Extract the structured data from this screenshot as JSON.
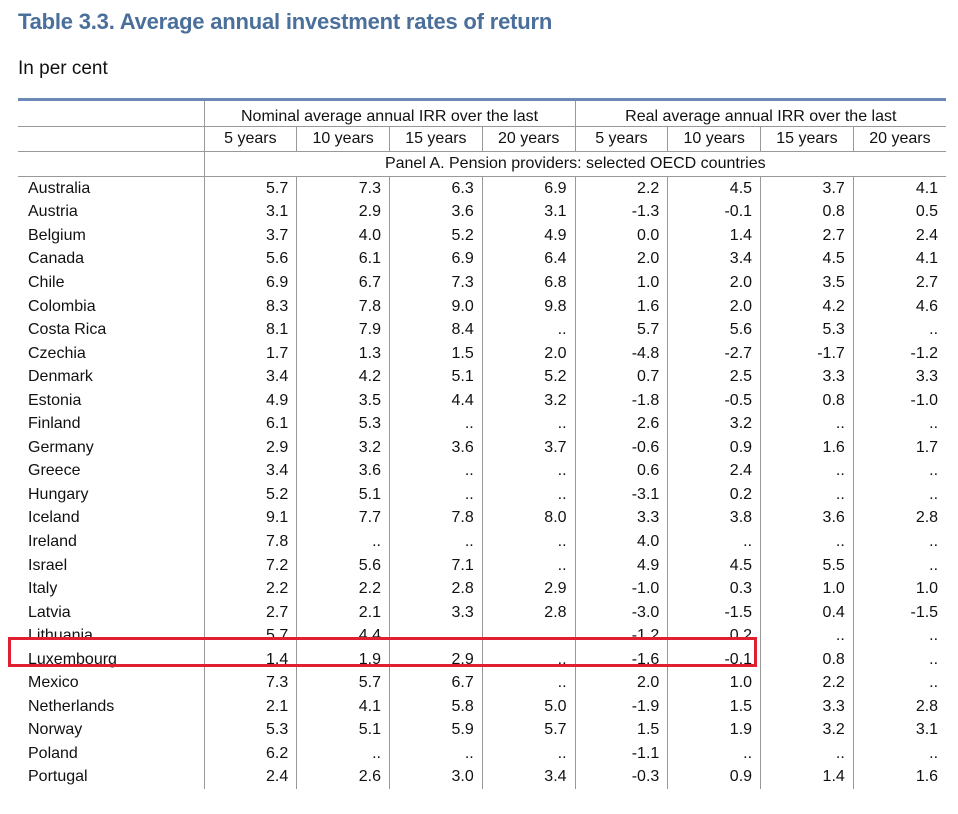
{
  "title": "Table 3.3. Average annual investment rates of return",
  "subtitle": "In per cent",
  "header": {
    "group_nominal": "Nominal average annual IRR over the last",
    "group_real": "Real average annual IRR over the last",
    "years": [
      "5 years",
      "10 years",
      "15 years",
      "20 years",
      "5 years",
      "10 years",
      "15 years",
      "20 years"
    ],
    "panel": "Panel A. Pension providers: selected OECD countries"
  },
  "rows": [
    {
      "country": "Australia",
      "values": [
        "5.7",
        "7.3",
        "6.3",
        "6.9",
        "2.2",
        "4.5",
        "3.7",
        "4.1"
      ]
    },
    {
      "country": "Austria",
      "values": [
        "3.1",
        "2.9",
        "3.6",
        "3.1",
        "-1.3",
        "-0.1",
        "0.8",
        "0.5"
      ]
    },
    {
      "country": "Belgium",
      "values": [
        "3.7",
        "4.0",
        "5.2",
        "4.9",
        "0.0",
        "1.4",
        "2.7",
        "2.4"
      ]
    },
    {
      "country": "Canada",
      "values": [
        "5.6",
        "6.1",
        "6.9",
        "6.4",
        "2.0",
        "3.4",
        "4.5",
        "4.1"
      ]
    },
    {
      "country": "Chile",
      "values": [
        "6.9",
        "6.7",
        "7.3",
        "6.8",
        "1.0",
        "2.0",
        "3.5",
        "2.7"
      ]
    },
    {
      "country": "Colombia",
      "values": [
        "8.3",
        "7.8",
        "9.0",
        "9.8",
        "1.6",
        "2.0",
        "4.2",
        "4.6"
      ]
    },
    {
      "country": "Costa Rica",
      "values": [
        "8.1",
        "7.9",
        "8.4",
        "..",
        "5.7",
        "5.6",
        "5.3",
        ".."
      ]
    },
    {
      "country": "Czechia",
      "values": [
        "1.7",
        "1.3",
        "1.5",
        "2.0",
        "-4.8",
        "-2.7",
        "-1.7",
        "-1.2"
      ]
    },
    {
      "country": "Denmark",
      "values": [
        "3.4",
        "4.2",
        "5.1",
        "5.2",
        "0.7",
        "2.5",
        "3.3",
        "3.3"
      ]
    },
    {
      "country": "Estonia",
      "values": [
        "4.9",
        "3.5",
        "4.4",
        "3.2",
        "-1.8",
        "-0.5",
        "0.8",
        "-1.0"
      ]
    },
    {
      "country": "Finland",
      "values": [
        "6.1",
        "5.3",
        "..",
        "..",
        "2.6",
        "3.2",
        "..",
        ".."
      ]
    },
    {
      "country": "Germany",
      "values": [
        "2.9",
        "3.2",
        "3.6",
        "3.7",
        "-0.6",
        "0.9",
        "1.6",
        "1.7"
      ]
    },
    {
      "country": "Greece",
      "values": [
        "3.4",
        "3.6",
        "..",
        "..",
        "0.6",
        "2.4",
        "..",
        ".."
      ]
    },
    {
      "country": "Hungary",
      "values": [
        "5.2",
        "5.1",
        "..",
        "..",
        "-3.1",
        "0.2",
        "..",
        ".."
      ]
    },
    {
      "country": "Iceland",
      "values": [
        "9.1",
        "7.7",
        "7.8",
        "8.0",
        "3.3",
        "3.8",
        "3.6",
        "2.8"
      ]
    },
    {
      "country": "Ireland",
      "values": [
        "7.8",
        "..",
        "..",
        "..",
        "4.0",
        "..",
        "..",
        ".."
      ]
    },
    {
      "country": "Israel",
      "values": [
        "7.2",
        "5.6",
        "7.1",
        "..",
        "4.9",
        "4.5",
        "5.5",
        ".."
      ]
    },
    {
      "country": "Italy",
      "values": [
        "2.2",
        "2.2",
        "2.8",
        "2.9",
        "-1.0",
        "0.3",
        "1.0",
        "1.0"
      ]
    },
    {
      "country": "Latvia",
      "values": [
        "2.7",
        "2.1",
        "3.3",
        "2.8",
        "-3.0",
        "-1.5",
        "0.4",
        "-1.5"
      ]
    },
    {
      "country": "Lithuania",
      "values": [
        "5.7",
        "4.4",
        "..",
        "..",
        "-1.2",
        "0.2",
        "..",
        ".."
      ]
    },
    {
      "country": "Luxembourg",
      "values": [
        "1.4",
        "1.9",
        "2.9",
        "..",
        "-1.6",
        "-0.1",
        "0.8",
        ".."
      ]
    },
    {
      "country": "Mexico",
      "values": [
        "7.3",
        "5.7",
        "6.7",
        "..",
        "2.0",
        "1.0",
        "2.2",
        ".."
      ]
    },
    {
      "country": "Netherlands",
      "values": [
        "2.1",
        "4.1",
        "5.8",
        "5.0",
        "-1.9",
        "1.5",
        "3.3",
        "2.8"
      ]
    },
    {
      "country": "Norway",
      "values": [
        "5.3",
        "5.1",
        "5.9",
        "5.7",
        "1.5",
        "1.9",
        "3.2",
        "3.1"
      ]
    },
    {
      "country": "Poland",
      "values": [
        "6.2",
        "..",
        "..",
        "..",
        "-1.1",
        "..",
        "..",
        ".."
      ]
    },
    {
      "country": "Portugal",
      "values": [
        "2.4",
        "2.6",
        "3.0",
        "3.4",
        "-0.3",
        "0.9",
        "1.4",
        "1.6"
      ]
    }
  ],
  "highlight_color": "#e0202e",
  "title_color": "#4a6f9a"
}
